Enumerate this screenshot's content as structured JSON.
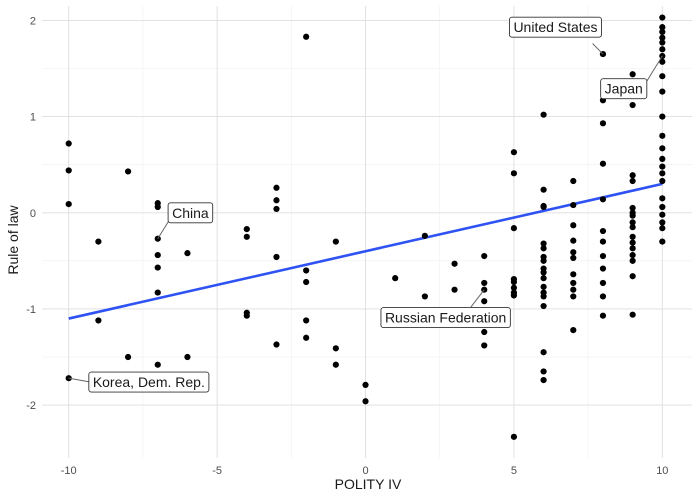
{
  "chart_data": {
    "type": "scatter",
    "title": "",
    "xlabel": "POLITY IV",
    "ylabel": "Rule of law",
    "xlim": [
      -10.9,
      11.0
    ],
    "ylim": [
      -2.55,
      2.15
    ],
    "xticks": [
      -10,
      -5,
      0,
      5,
      10
    ],
    "yticks": [
      -2,
      -1,
      0,
      1,
      2
    ],
    "xtick_labels": [
      "-10",
      "-5",
      "0",
      "5",
      "10"
    ],
    "ytick_labels": [
      "-2",
      "-1",
      "0",
      "1",
      "2"
    ],
    "grid": true,
    "background": "#ffffff",
    "point_color": "#000000",
    "trend_color": "#2e53f2",
    "trend_line": {
      "x": [
        -10,
        10
      ],
      "y": [
        -1.1,
        0.3
      ]
    },
    "points": [
      [
        -10,
        0.72
      ],
      [
        -10,
        0.44
      ],
      [
        -10,
        0.09
      ],
      [
        -10,
        -1.72
      ],
      [
        -9,
        -0.3
      ],
      [
        -9,
        -1.12
      ],
      [
        -8,
        0.43
      ],
      [
        -8,
        -1.5
      ],
      [
        -7,
        0.1
      ],
      [
        -7,
        0.06
      ],
      [
        -7,
        -0.27
      ],
      [
        -7,
        -0.44
      ],
      [
        -7,
        -0.57
      ],
      [
        -7,
        -0.83
      ],
      [
        -7,
        -1.58
      ],
      [
        -6,
        -0.42
      ],
      [
        -6,
        -1.5
      ],
      [
        -4,
        -0.17
      ],
      [
        -4,
        -0.25
      ],
      [
        -4,
        -1.04
      ],
      [
        -4,
        -1.07
      ],
      [
        -3,
        0.26
      ],
      [
        -3,
        0.13
      ],
      [
        -3,
        0.04
      ],
      [
        -3,
        -0.46
      ],
      [
        -3,
        -1.37
      ],
      [
        -2,
        1.83
      ],
      [
        -2,
        -0.6
      ],
      [
        -2,
        -0.72
      ],
      [
        -2,
        -1.12
      ],
      [
        -2,
        -1.3
      ],
      [
        -1,
        -0.3
      ],
      [
        -1,
        -1.41
      ],
      [
        -1,
        -1.58
      ],
      [
        0,
        -1.79
      ],
      [
        0,
        -1.96
      ],
      [
        1,
        -0.68
      ],
      [
        2,
        -0.24
      ],
      [
        2,
        -0.87
      ],
      [
        3,
        -0.53
      ],
      [
        3,
        -0.8
      ],
      [
        4,
        -0.45
      ],
      [
        4,
        -0.73
      ],
      [
        4,
        -0.8
      ],
      [
        4,
        -0.92
      ],
      [
        4,
        -1.24
      ],
      [
        4,
        -1.38
      ],
      [
        5,
        0.63
      ],
      [
        5,
        0.41
      ],
      [
        5,
        -0.16
      ],
      [
        5,
        -0.69
      ],
      [
        5,
        -0.72
      ],
      [
        5,
        -0.78
      ],
      [
        5,
        -0.83
      ],
      [
        5,
        -0.86
      ],
      [
        5,
        -2.33
      ],
      [
        6,
        1.02
      ],
      [
        6,
        0.24
      ],
      [
        6,
        0.07
      ],
      [
        6,
        0.06
      ],
      [
        6,
        -0.32
      ],
      [
        6,
        -0.37
      ],
      [
        6,
        -0.46
      ],
      [
        6,
        -0.5
      ],
      [
        6,
        -0.58
      ],
      [
        6,
        -0.62
      ],
      [
        6,
        -0.68
      ],
      [
        6,
        -0.77
      ],
      [
        6,
        -0.83
      ],
      [
        6,
        -0.87
      ],
      [
        6,
        -0.97
      ],
      [
        6,
        -1.45
      ],
      [
        6,
        -1.65
      ],
      [
        6,
        -1.74
      ],
      [
        7,
        0.33
      ],
      [
        7,
        0.08
      ],
      [
        7,
        -0.13
      ],
      [
        7,
        -0.29
      ],
      [
        7,
        -0.41
      ],
      [
        7,
        -0.47
      ],
      [
        7,
        -0.64
      ],
      [
        7,
        -0.73
      ],
      [
        7,
        -0.8
      ],
      [
        7,
        -0.87
      ],
      [
        7,
        -1.22
      ],
      [
        8,
        1.65
      ],
      [
        8,
        1.17
      ],
      [
        8,
        0.93
      ],
      [
        8,
        0.51
      ],
      [
        8,
        0.14
      ],
      [
        8,
        -0.19
      ],
      [
        8,
        -0.3
      ],
      [
        8,
        -0.45
      ],
      [
        8,
        -0.58
      ],
      [
        8,
        -0.73
      ],
      [
        8,
        -0.87
      ],
      [
        8,
        -1.07
      ],
      [
        9,
        1.44
      ],
      [
        9,
        1.12
      ],
      [
        9,
        0.39
      ],
      [
        9,
        0.33
      ],
      [
        9,
        0.05
      ],
      [
        9,
        0.0
      ],
      [
        9,
        -0.03
      ],
      [
        9,
        -0.1
      ],
      [
        9,
        -0.15
      ],
      [
        9,
        -0.25
      ],
      [
        9,
        -0.31
      ],
      [
        9,
        -0.37
      ],
      [
        9,
        -0.44
      ],
      [
        9,
        -0.5
      ],
      [
        9,
        -0.66
      ],
      [
        9,
        -1.06
      ],
      [
        10,
        2.03
      ],
      [
        10,
        1.93
      ],
      [
        10,
        1.88
      ],
      [
        10,
        1.82
      ],
      [
        10,
        1.77
      ],
      [
        10,
        1.7
      ],
      [
        10,
        1.63
      ],
      [
        10,
        1.57
      ],
      [
        10,
        1.42
      ],
      [
        10,
        1.26
      ],
      [
        10,
        1.0
      ],
      [
        10,
        0.8
      ],
      [
        10,
        0.67
      ],
      [
        10,
        0.56
      ],
      [
        10,
        0.48
      ],
      [
        10,
        0.41
      ],
      [
        10,
        0.33
      ],
      [
        10,
        0.15
      ],
      [
        10,
        0.06
      ],
      [
        10,
        -0.02
      ],
      [
        10,
        -0.1
      ],
      [
        10,
        -0.16
      ],
      [
        10,
        -0.3
      ]
    ],
    "annotations": [
      {
        "label": "United States",
        "point": [
          8,
          1.65
        ],
        "box_center": [
          6.4,
          1.93
        ],
        "leader_end": [
          7.65,
          1.76
        ]
      },
      {
        "label": "Japan",
        "point": [
          10,
          1.63
        ],
        "box_center": [
          8.7,
          1.29
        ],
        "leader_end": [
          9.48,
          1.37
        ]
      },
      {
        "label": "China",
        "point": [
          -7,
          -0.27
        ],
        "box_center": [
          -5.9,
          0.0
        ],
        "leader_end": [
          -6.62,
          -0.08
        ]
      },
      {
        "label": "Russian Federation",
        "point": [
          4,
          -0.8
        ],
        "box_center": [
          2.7,
          -1.09
        ],
        "leader_end": [
          3.55,
          -0.98
        ]
      },
      {
        "label": "Korea, Dem. Rep.",
        "point": [
          -10,
          -1.72
        ],
        "box_center": [
          -7.3,
          -1.76
        ],
        "leader_end": [
          -9.28,
          -1.76
        ]
      }
    ]
  }
}
